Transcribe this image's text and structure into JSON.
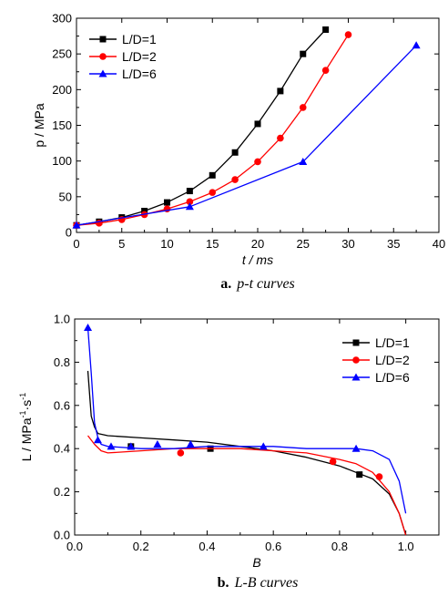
{
  "chart_data": [
    {
      "type": "line",
      "caption_label": "a.",
      "caption_text": "p-t curves",
      "xlabel": "t / ms",
      "ylabel": "p / MPa",
      "xlim": [
        0,
        40
      ],
      "ylim": [
        0,
        300
      ],
      "xticks": [
        "0",
        "5",
        "10",
        "15",
        "20",
        "25",
        "30",
        "35",
        "40"
      ],
      "yticks": [
        "0",
        "50",
        "100",
        "150",
        "200",
        "250",
        "300"
      ],
      "grid": false,
      "legend_position": "top-left",
      "series": [
        {
          "name": "L/D=1",
          "color": "#000000",
          "marker": "square",
          "x": [
            0,
            2.5,
            5,
            7.5,
            10,
            12.5,
            15,
            17.5,
            20,
            22.5,
            25,
            27.5
          ],
          "y": [
            10,
            15,
            21,
            30,
            42,
            58,
            80,
            112,
            152,
            198,
            250,
            284
          ]
        },
        {
          "name": "L/D=2",
          "color": "#ff0000",
          "marker": "circle",
          "x": [
            0,
            2.5,
            5,
            7.5,
            10,
            12.5,
            15,
            17.5,
            20,
            22.5,
            25,
            27.5,
            30
          ],
          "y": [
            10,
            13,
            18,
            25,
            33,
            43,
            56,
            74,
            99,
            132,
            175,
            227,
            277
          ]
        },
        {
          "name": "L/D=6",
          "color": "#0000ff",
          "marker": "triangle",
          "x": [
            0,
            12.5,
            25,
            37.5
          ],
          "y": [
            10,
            36,
            99,
            262
          ]
        }
      ]
    },
    {
      "type": "line",
      "caption_label": "b.",
      "caption_text": "L-B curves",
      "xlabel": "B",
      "ylabel": "L / MPa",
      "ylabel_sup": "-1",
      "ylabel_mid": "·s",
      "ylabel_sup2": "-1",
      "xlim": [
        0,
        1.1
      ],
      "ylim": [
        0,
        1.0
      ],
      "xticks": [
        "0.0",
        "0.2",
        "0.4",
        "0.6",
        "0.8",
        "1.0"
      ],
      "yticks": [
        "0.0",
        "0.2",
        "0.4",
        "0.6",
        "0.8",
        "1.0"
      ],
      "grid": false,
      "legend_position": "top-right",
      "series": [
        {
          "name": "L/D=1",
          "color": "#000000",
          "marker": "square",
          "x": [
            0.04,
            0.05,
            0.06,
            0.07,
            0.1,
            0.2,
            0.3,
            0.4,
            0.5,
            0.6,
            0.7,
            0.8,
            0.85,
            0.9,
            0.95,
            0.98,
            1.0
          ],
          "y": [
            0.76,
            0.55,
            0.5,
            0.47,
            0.46,
            0.45,
            0.44,
            0.43,
            0.41,
            0.39,
            0.36,
            0.32,
            0.29,
            0.26,
            0.19,
            0.1,
            0.0
          ],
          "marker_x": [
            0.17,
            0.41,
            0.86
          ],
          "marker_y": [
            0.41,
            0.4,
            0.28
          ]
        },
        {
          "name": "L/D=2",
          "color": "#ff0000",
          "marker": "circle",
          "x": [
            0.04,
            0.06,
            0.08,
            0.1,
            0.2,
            0.3,
            0.4,
            0.5,
            0.6,
            0.7,
            0.8,
            0.85,
            0.9,
            0.95,
            0.98,
            1.0
          ],
          "y": [
            0.46,
            0.42,
            0.39,
            0.38,
            0.39,
            0.4,
            0.4,
            0.4,
            0.39,
            0.38,
            0.35,
            0.33,
            0.29,
            0.2,
            0.1,
            0.0
          ],
          "marker_x": [
            0.32,
            0.78,
            0.92
          ],
          "marker_y": [
            0.38,
            0.34,
            0.27
          ]
        },
        {
          "name": "L/D=6",
          "color": "#0000ff",
          "marker": "triangle",
          "x": [
            0.04,
            0.05,
            0.06,
            0.07,
            0.08,
            0.1,
            0.2,
            0.3,
            0.4,
            0.5,
            0.6,
            0.7,
            0.8,
            0.85,
            0.9,
            0.95,
            0.98,
            1.0
          ],
          "y": [
            0.96,
            0.75,
            0.52,
            0.45,
            0.42,
            0.41,
            0.4,
            0.4,
            0.41,
            0.41,
            0.41,
            0.4,
            0.4,
            0.4,
            0.39,
            0.35,
            0.25,
            0.1
          ],
          "marker_x": [
            0.04,
            0.07,
            0.11,
            0.17,
            0.25,
            0.35,
            0.57,
            0.85
          ],
          "marker_y": [
            0.96,
            0.44,
            0.41,
            0.41,
            0.42,
            0.42,
            0.41,
            0.4
          ]
        }
      ]
    }
  ]
}
